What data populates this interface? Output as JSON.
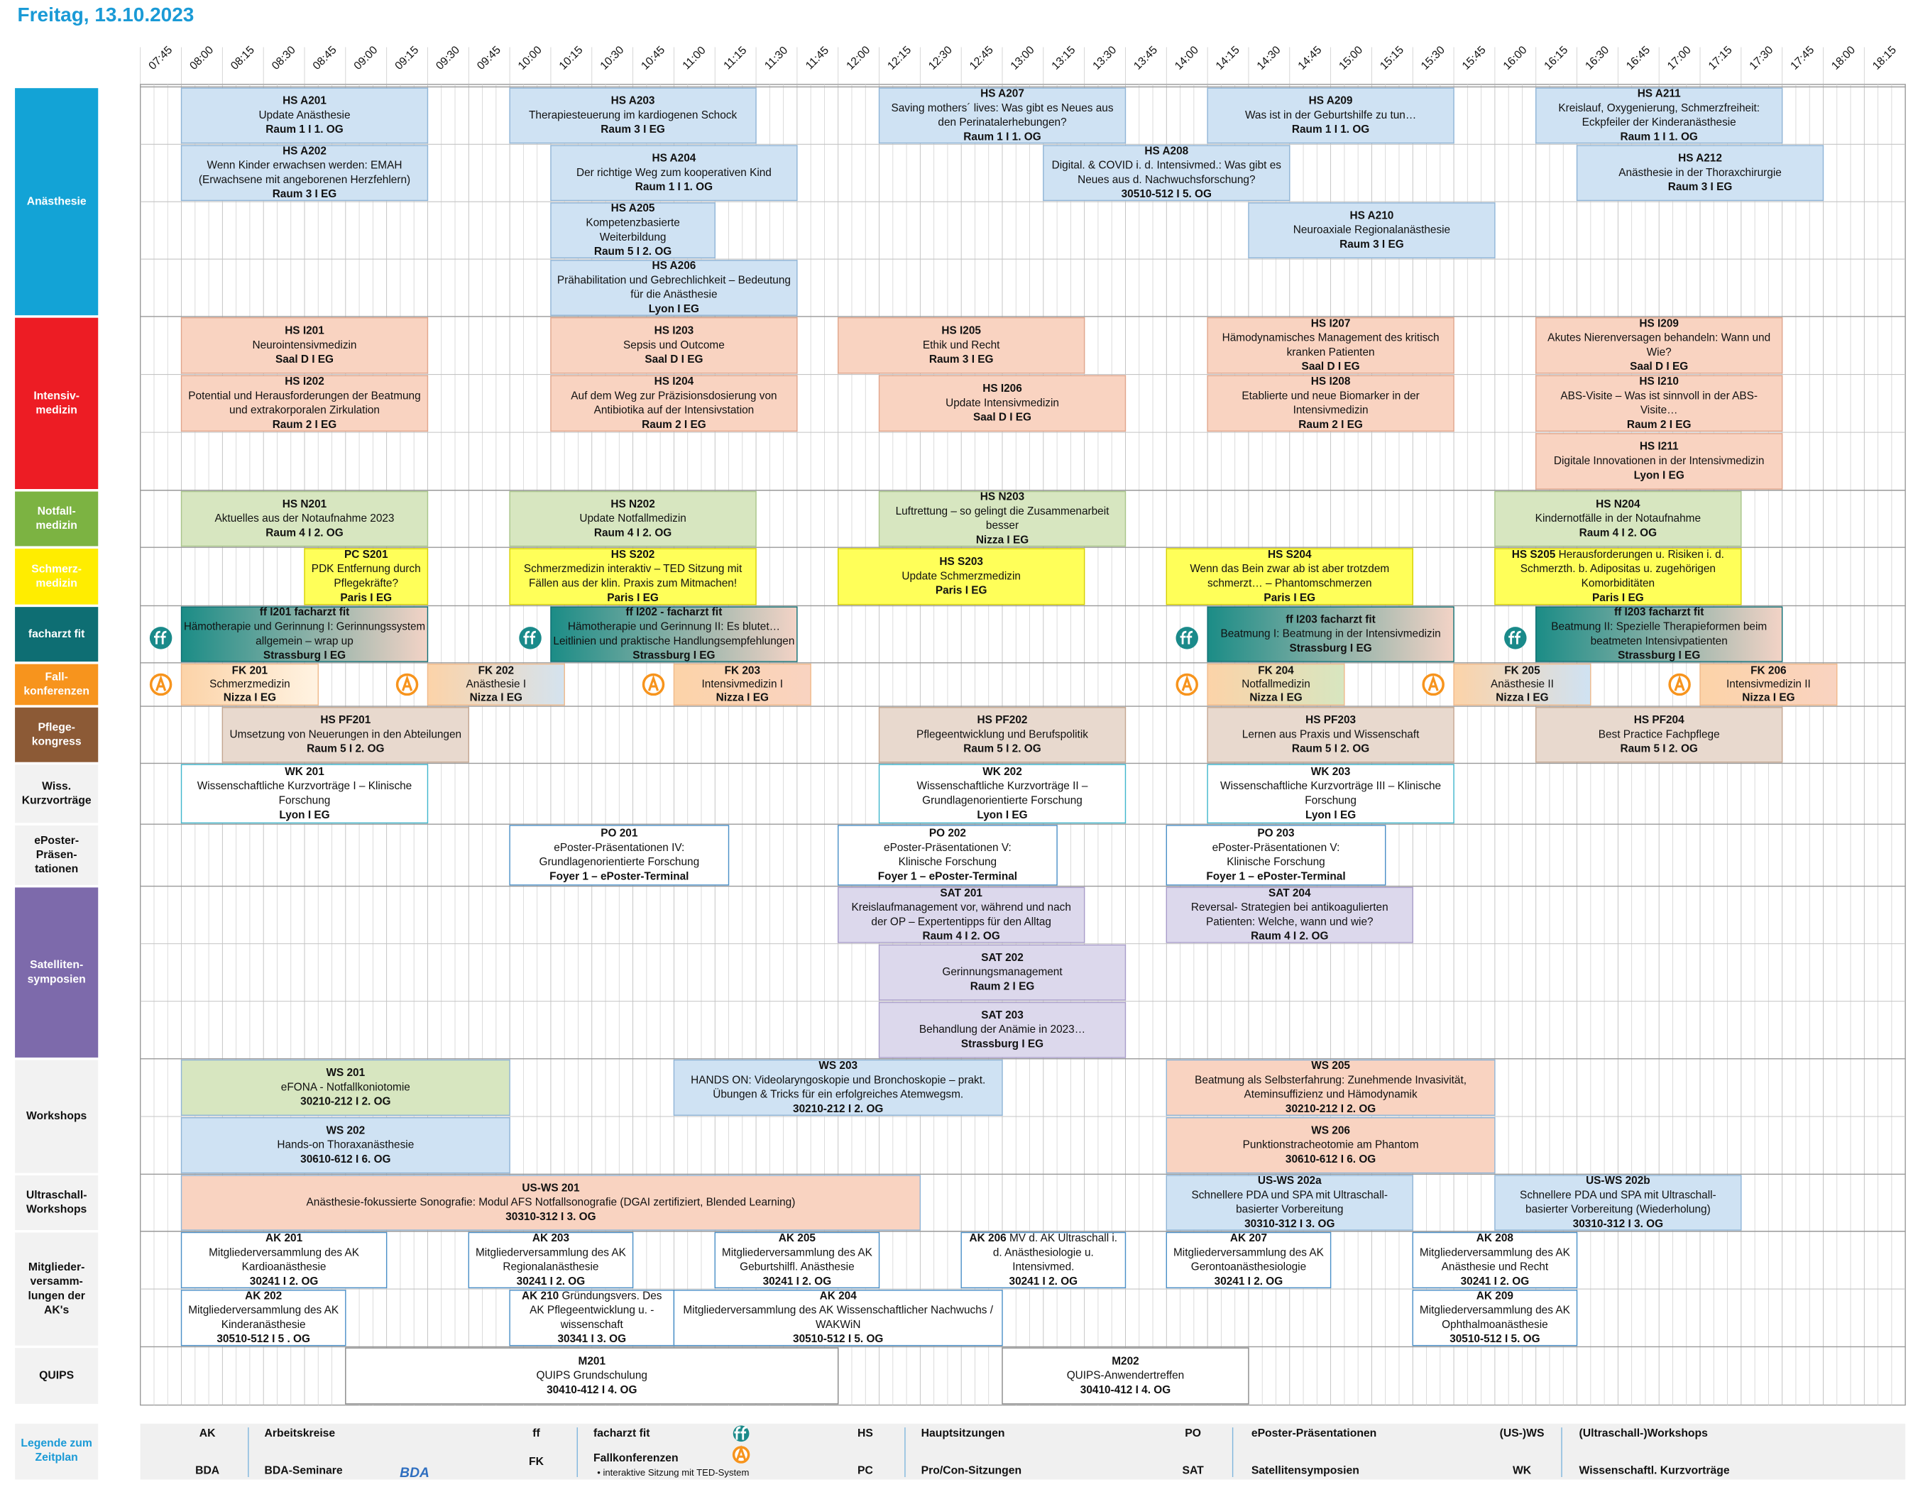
{
  "header": {
    "title": "Freitag, 13.10.2023"
  },
  "times": [
    "07:45",
    "08:00",
    "08:15",
    "08:30",
    "08:45",
    "09:00",
    "09:15",
    "09:30",
    "09:45",
    "10:00",
    "10:15",
    "10:30",
    "10:45",
    "11:00",
    "11:15",
    "11:30",
    "11:45",
    "12:00",
    "12:15",
    "12:30",
    "12:45",
    "13:00",
    "13:15",
    "13:30",
    "13:45",
    "14:00",
    "14:15",
    "14:30",
    "14:45",
    "15:00",
    "15:15",
    "15:30",
    "15:45",
    "16:00",
    "16:15",
    "16:30",
    "16:45",
    "17:00",
    "17:15",
    "17:30",
    "17:45",
    "18:00",
    "18:15"
  ],
  "tracks": [
    {
      "label": [
        "Anästhesie"
      ],
      "rows": [
        [
          {
            "code": "HS A201",
            "lines": [
              "Update Anästhesie"
            ],
            "room": "Raum 1 I 1. OG"
          },
          {
            "code": "HS A203",
            "lines": [
              "Therapiesteuerung im kardiogenen Schock"
            ],
            "room": "Raum 3 I EG"
          },
          {
            "code": "HS A207",
            "lines": [
              "Saving mothers´ lives: Was gibt es Neues aus",
              "den Perinatalerhebungen?"
            ],
            "room": "Raum 1 I 1. OG"
          },
          {
            "code": "HS A209",
            "lines": [
              "Was ist in der Geburtshilfe zu tun…"
            ],
            "room": "Raum 1 I 1. OG"
          },
          {
            "code": "HS A211",
            "lines": [
              "Kreislauf, Oxygenierung, Schmerzfreiheit:",
              "Eckpfeiler der Kinderanästhesie"
            ],
            "room": "Raum 1 I 1. OG"
          }
        ],
        [
          {
            "code": "HS A202",
            "lines": [
              "Wenn Kinder erwachsen werden: EMAH",
              "(Erwachsene mit angeborenen Herzfehlern)"
            ],
            "room": "Raum 3 I EG"
          },
          {
            "code": "HS A204",
            "lines": [
              "Der richtige Weg zum kooperativen Kind"
            ],
            "room": "Raum 1 I 1. OG"
          },
          {
            "code": "HS A208",
            "lines": [
              "Digital. & COVID i. d. Intensivmed.: Was gibt es",
              "Neues aus d. Nachwuchsforschung?"
            ],
            "room": "30510-512 I 5. OG"
          },
          {
            "code": "HS A212",
            "lines": [
              "Anästhesie in der Thoraxchirurgie"
            ],
            "room": "Raum 3 I EG"
          }
        ],
        [
          {
            "code": "HS A205",
            "lines": [
              "Kompetenzbasierte",
              "Weiterbildung"
            ],
            "room": "Raum 5 I 2. OG"
          },
          {
            "code": "HS A210",
            "lines": [
              "Neuroaxiale Regionalanästhesie"
            ],
            "room": "Raum 3 I EG"
          }
        ],
        [
          {
            "code": "HS A206",
            "lines": [
              "Prähabilitation und Gebrechlichkeit – Bedeutung",
              "für die Anästhesie"
            ],
            "room": "Lyon I EG"
          }
        ]
      ]
    },
    {
      "label": [
        "Intensiv-",
        "medizin"
      ],
      "rows": [
        [
          {
            "code": "HS I201",
            "lines": [
              "Neurointensivmedizin"
            ],
            "room": "Saal D I EG"
          },
          {
            "code": "HS I203",
            "lines": [
              "Sepsis und Outcome"
            ],
            "room": "Saal D I EG"
          },
          {
            "code": "HS I205",
            "lines": [
              "Ethik und Recht"
            ],
            "room": "Raum 3 I EG"
          },
          {
            "code": "HS I207",
            "lines": [
              "Hämodynamisches Management des kritisch",
              "kranken Patienten"
            ],
            "room": "Saal D I EG"
          },
          {
            "code": "HS I209",
            "lines": [
              "Akutes Nierenversagen behandeln: Wann und",
              "Wie?"
            ],
            "room": "Saal D I EG"
          }
        ],
        [
          {
            "code": "HS I202",
            "lines": [
              "Potential und Herausforderungen der Beatmung",
              "und extrakorporalen Zirkulation"
            ],
            "room": "Raum 2 I EG"
          },
          {
            "code": "HS I204",
            "lines": [
              "Auf dem Weg zur Präzisionsdosierung von",
              "Antibiotika auf der Intensivstation"
            ],
            "room": "Raum 2 I EG"
          },
          {
            "code": "HS I206",
            "lines": [
              "Update Intensivmedizin"
            ],
            "room": "Saal D I EG"
          },
          {
            "code": "HS I208",
            "lines": [
              "Etablierte und neue Biomarker in der",
              "Intensivmedizin"
            ],
            "room": "Raum 2 I EG"
          },
          {
            "code": "HS I210",
            "lines": [
              "ABS-Visite – Was ist sinnvoll in der ABS-",
              "Visite…"
            ],
            "room": "Raum 2 I EG"
          }
        ],
        [
          {
            "code": "HS I211",
            "lines": [
              "Digitale Innovationen in der Intensivmedizin"
            ],
            "room": "Lyon I EG"
          }
        ]
      ]
    },
    {
      "label": [
        "Notfall-",
        "medizin"
      ],
      "rows": [
        [
          {
            "code": "HS N201",
            "lines": [
              "Aktuelles aus der Notaufnahme 2023"
            ],
            "room": "Raum 4 I 2. OG"
          },
          {
            "code": "HS N202",
            "lines": [
              "Update Notfallmedizin"
            ],
            "room": "Raum 4 I 2. OG"
          },
          {
            "code": "HS N203",
            "lines": [
              "Luftrettung – so gelingt die Zusammenarbeit",
              "besser"
            ],
            "room": "Nizza I EG"
          },
          {
            "code": "HS N204",
            "lines": [
              "Kindernotfälle in der Notaufnahme"
            ],
            "room": "Raum 4 I 2. OG"
          }
        ]
      ]
    },
    {
      "label": [
        "Schmerz-",
        "medizin"
      ],
      "rows": [
        [
          {
            "code": "PC S201",
            "lines": [
              "PDK Entfernung durch",
              "Pflegekräfte?"
            ],
            "room": "Paris I EG"
          },
          {
            "code": "HS S202",
            "lines": [
              "Schmerzmedizin interaktiv – TED Sitzung mit",
              "Fällen aus der klin. Praxis zum Mitmachen!"
            ],
            "room": "Paris I EG"
          },
          {
            "code": "HS S203",
            "lines": [
              "Update Schmerzmedizin"
            ],
            "room": "Paris I EG"
          },
          {
            "code": "HS S204",
            "lines": [
              "Wenn das Bein zwar ab ist aber trotzdem",
              "schmerzt… – Phantomschmerzen"
            ],
            "room": "Paris I EG"
          },
          {
            "code": "HS S205",
            "lines": [
              "Herausforderungen u. Risiken i. d.",
              "Schmerzth. b. Adipositas u. zugehörigen",
              "Komorbiditäten"
            ],
            "room": "Paris I EG"
          }
        ]
      ]
    },
    {
      "label": [
        "facharzt fit"
      ],
      "rows": [
        [
          {
            "code": "ff I201 facharzt fit",
            "lines": [
              "Hämotherapie und Gerinnung I: Gerinnungssystem",
              "allgemein – wrap up"
            ],
            "room": "Strassburg I EG"
          },
          {
            "code": "ff I202 - facharzt fit",
            "lines": [
              "Hämotherapie und Gerinnung II: Es blutet…",
              "Leitlinien und praktische Handlungsempfehlungen"
            ],
            "room": "Strassburg I EG"
          },
          {
            "code": "ff I203 facharzt fit",
            "lines": [
              "Beatmung I: Beatmung in der Intensivmedizin"
            ],
            "room": "Strassburg I EG"
          },
          {
            "code": "ff I203 facharzt fit",
            "lines": [
              "Beatmung II: Spezielle Therapieformen beim",
              "beatmeten Intensivpatienten"
            ],
            "room": "Strassburg I EG"
          }
        ]
      ]
    },
    {
      "label": [
        "Fall-",
        "konferenzen"
      ],
      "rows": [
        [
          {
            "code": "FK 201",
            "lines": [
              "Schmerzmedizin"
            ],
            "room": "Nizza I EG"
          },
          {
            "code": "FK 202",
            "lines": [
              "Anästhesie I"
            ],
            "room": "Nizza I EG"
          },
          {
            "code": "FK 203",
            "lines": [
              "Intensivmedizin I"
            ],
            "room": "Nizza I EG"
          },
          {
            "code": "FK 204",
            "lines": [
              "Notfallmedizin"
            ],
            "room": "Nizza I EG"
          },
          {
            "code": "FK 205",
            "lines": [
              "Anästhesie II"
            ],
            "room": "Nizza I EG"
          },
          {
            "code": "FK 206",
            "lines": [
              "Intensivmedizin II"
            ],
            "room": "Nizza I EG"
          }
        ]
      ]
    },
    {
      "label": [
        "Pflege-",
        "kongress"
      ],
      "rows": [
        [
          {
            "code": "HS PF201",
            "lines": [
              "Umsetzung von Neuerungen in den Abteilungen"
            ],
            "room": "Raum 5 I 2. OG"
          },
          {
            "code": "HS PF202",
            "lines": [
              "Pflegeentwicklung und Berufspolitik"
            ],
            "room": "Raum 5 I 2. OG"
          },
          {
            "code": "HS PF203",
            "lines": [
              "Lernen aus Praxis und Wissenschaft"
            ],
            "room": "Raum 5 I 2. OG"
          },
          {
            "code": "HS PF204",
            "lines": [
              "Best Practice Fachpflege"
            ],
            "room": "Raum 5 I 2. OG"
          }
        ]
      ]
    },
    {
      "label": [
        "Wiss.",
        "Kurzvorträge"
      ],
      "rows": [
        [
          {
            "code": "WK 201",
            "lines": [
              "Wissenschaftliche Kurzvorträge I – Klinische",
              "Forschung"
            ],
            "room": "Lyon I EG"
          },
          {
            "code": "WK 202",
            "lines": [
              "Wissenschaftliche Kurzvorträge II –",
              "Grundlagenorientierte Forschung"
            ],
            "room": "Lyon I EG"
          },
          {
            "code": "WK 203",
            "lines": [
              "Wissenschaftliche Kurzvorträge III – Klinische",
              "Forschung"
            ],
            "room": "Lyon I EG"
          }
        ]
      ]
    },
    {
      "label": [
        "ePoster-",
        "Präsen-",
        "tationen"
      ],
      "rows": [
        [
          {
            "code": "PO 201",
            "lines": [
              "ePoster-Präsentationen IV:",
              "Grundlagenorientierte Forschung"
            ],
            "room": "Foyer 1 – ePoster-Terminal"
          },
          {
            "code": "PO 202",
            "lines": [
              "ePoster-Präsentationen V:",
              "Klinische Forschung"
            ],
            "room": "Foyer 1 – ePoster-Terminal"
          },
          {
            "code": "PO 203",
            "lines": [
              "ePoster-Präsentationen V:",
              "Klinische Forschung"
            ],
            "room": "Foyer 1 – ePoster-Terminal"
          }
        ]
      ]
    },
    {
      "label": [
        "Satelliten-",
        "symposien"
      ],
      "rows": [
        [
          {
            "code": "SAT 201",
            "lines": [
              "Kreislaufmanagement vor, während und nach",
              "der OP – Expertentipps für den Alltag"
            ],
            "room": "Raum 4 I 2. OG"
          },
          {
            "code": "SAT 204",
            "lines": [
              "Reversal- Strategien bei antikoagulierten",
              "Patienten: Welche, wann und wie?"
            ],
            "room": "Raum 4 I 2. OG"
          }
        ],
        [
          {
            "code": "SAT 202",
            "lines": [
              "Gerinnungsmanagement"
            ],
            "room": "Raum 2 I EG"
          }
        ],
        [
          {
            "code": "SAT 203",
            "lines": [
              "Behandlung der Anämie in 2023…"
            ],
            "room": "Strassburg I EG"
          }
        ]
      ]
    },
    {
      "label": [
        "Workshops"
      ],
      "rows": [
        [
          {
            "code": "WS 201",
            "lines": [
              "eFONA - Notfallkoniotomie"
            ],
            "room": "30210-212 I 2. OG"
          },
          {
            "code": "WS 203",
            "lines": [
              "HANDS ON: Videolaryngoskopie und Bronchoskopie – prakt.",
              "Übungen & Tricks für ein erfolgreiches Atemwegsm."
            ],
            "room": "30210-212 I 2. OG"
          },
          {
            "code": "WS 205",
            "lines": [
              "Beatmung als Selbsterfahrung: Zunehmende Invasivität,",
              "Ateminsuffizienz und Hämodynamik"
            ],
            "room": "30210-212 I 2. OG"
          }
        ],
        [
          {
            "code": "WS 202",
            "lines": [
              "Hands-on Thoraxanästhesie"
            ],
            "room": "30610-612 I 6. OG"
          },
          {
            "code": "WS 206",
            "lines": [
              "Punktionstracheotomie am Phantom"
            ],
            "room": "30610-612 I 6. OG"
          }
        ]
      ]
    },
    {
      "label": [
        "Ultraschall-",
        "Workshops"
      ],
      "rows": [
        [
          {
            "code": "US-WS 201",
            "lines": [
              "Anästhesie-fokussierte Sonografie: Modul AFS Notfallsonografie (DGAI zertifiziert, Blended Learning)"
            ],
            "room": "30310-312 I 3. OG"
          },
          {
            "code": "US-WS 202a",
            "lines": [
              "Schnellere PDA und SPA mit Ultraschall-",
              "basierter Vorbereitung"
            ],
            "room": "30310-312 I 3. OG"
          },
          {
            "code": "US-WS 202b",
            "lines": [
              "Schnellere PDA und SPA mit Ultraschall-",
              "basierter Vorbereitung (Wiederholung)"
            ],
            "room": "30310-312 I 3. OG"
          }
        ]
      ]
    },
    {
      "label": [
        "Mitglieder-",
        "versamm-",
        "lungen der",
        "AK's"
      ],
      "rows": [
        [
          {
            "code": "AK 201",
            "lines": [
              "Mitgliederversammlung des AK",
              "Kardioanästhesie"
            ],
            "room": "30241 I 2. OG"
          },
          {
            "code": "AK 203",
            "lines": [
              "Mitgliederversammlung des AK",
              "Regionalanästhesie"
            ],
            "room": "30241 I 2. OG"
          },
          {
            "code": "AK 205",
            "lines": [
              "Mitgliederversammlung des AK",
              "Geburtshilfl. Anästhesie"
            ],
            "room": "30241 I 2. OG"
          },
          {
            "code": "AK 206",
            "lines": [
              "MV d. AK Ultraschall i.",
              "d. Anästhesiologie u.",
              "Intensivmed."
            ],
            "room": "30241 I 2. OG"
          },
          {
            "code": "AK 207",
            "lines": [
              "Mitgliederversammlung des AK",
              "Gerontoanästhesiologie"
            ],
            "room": "30241 I 2. OG"
          },
          {
            "code": "AK 208",
            "lines": [
              "Mitgliederversammlung des AK",
              "Anästhesie und Recht"
            ],
            "room": "30241 I 2. OG"
          }
        ],
        [
          {
            "code": "AK 202",
            "lines": [
              "Mitgliederversammlung des AK",
              "Kinderanästhesie"
            ],
            "room": "30510-512 I 5 . OG"
          },
          {
            "code": "AK 210",
            "lines": [
              "Gründungsvers. Des",
              "AK Pflegeentwicklung u. -",
              "wissenschaft"
            ],
            "room": "30341 I 3. OG"
          },
          {
            "code": "AK 204",
            "lines": [
              "Mitgliederversammlung des AK Wissenschaftlicher Nachwuchs /",
              "WAKWiN"
            ],
            "room": "30510-512 I 5. OG"
          },
          {
            "code": "AK 209",
            "lines": [
              "Mitgliederversammlung des AK",
              "Ophthalmoanästhesie"
            ],
            "room": "30510-512 I 5. OG"
          }
        ]
      ]
    },
    {
      "label": [
        "QUIPS"
      ],
      "rows": [
        [
          {
            "code": "M201",
            "lines": [
              "QUIPS Grundschulung"
            ],
            "room": "30410-412 I 4. OG"
          },
          {
            "code": "M202",
            "lines": [
              "QUIPS-Anwendertreffen"
            ],
            "room": "30410-412 I 4. OG"
          }
        ]
      ]
    }
  ],
  "legend": {
    "title": [
      "Legende zum",
      "Zeitplan"
    ],
    "items": [
      {
        "abbr": "AK",
        "text": "Arbeitskreise"
      },
      {
        "abbr": "BDA",
        "text": "BDA-Seminare",
        "logo": "BDA"
      },
      {
        "abbr": "ff",
        "text": "facharzt fit"
      },
      {
        "abbr": "FK",
        "text": "Fallkonferenzen",
        "note": "• interaktive Sitzung mit TED-System"
      },
      {
        "abbr": "HS",
        "text": "Hauptsitzungen"
      },
      {
        "abbr": "PC",
        "text": "Pro/Con-Sitzungen"
      },
      {
        "abbr": "PO",
        "text": "ePoster-Präsentationen"
      },
      {
        "abbr": "SAT",
        "text": "Satellitensymposien"
      },
      {
        "abbr": "(US-)WS",
        "text": "(Ultraschall-)Workshops"
      },
      {
        "abbr": "WK",
        "text": "Wissenschaftl. Kurzvorträge"
      }
    ]
  }
}
